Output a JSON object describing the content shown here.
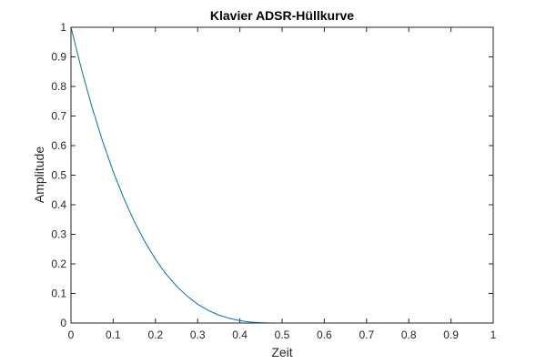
{
  "chart_data": {
    "type": "line",
    "title": "Klavier ADSR-Hüllkurve",
    "xlabel": "Zeit",
    "ylabel": "Amplitude",
    "xlim": [
      0,
      1
    ],
    "ylim": [
      0,
      1
    ],
    "xticks": [
      "0",
      "0.1",
      "0.2",
      "0.3",
      "0.4",
      "0.5",
      "0.6",
      "0.7",
      "0.8",
      "0.9",
      "1"
    ],
    "yticks": [
      "0",
      "0.1",
      "0.2",
      "0.3",
      "0.4",
      "0.5",
      "0.6",
      "0.7",
      "0.8",
      "0.9",
      "1"
    ],
    "grid": false,
    "series": [
      {
        "color": "#0072BD",
        "x": [
          0,
          0.025,
          0.05,
          0.075,
          0.1,
          0.125,
          0.15,
          0.175,
          0.2,
          0.225,
          0.25,
          0.275,
          0.3,
          0.325,
          0.35,
          0.375,
          0.4,
          0.425,
          0.45,
          0.475,
          0.5,
          0.525,
          0.55,
          0.6,
          0.7,
          0.8,
          0.9,
          1.0
        ],
        "y": [
          1.0,
          0.857,
          0.729,
          0.614,
          0.512,
          0.422,
          0.343,
          0.275,
          0.216,
          0.166,
          0.125,
          0.091,
          0.064,
          0.043,
          0.027,
          0.016,
          0.008,
          0.003,
          0.001,
          0.0001,
          0.0,
          0.0,
          0.0,
          0.0,
          0.0,
          0.0,
          0.0,
          0.0
        ]
      }
    ]
  }
}
